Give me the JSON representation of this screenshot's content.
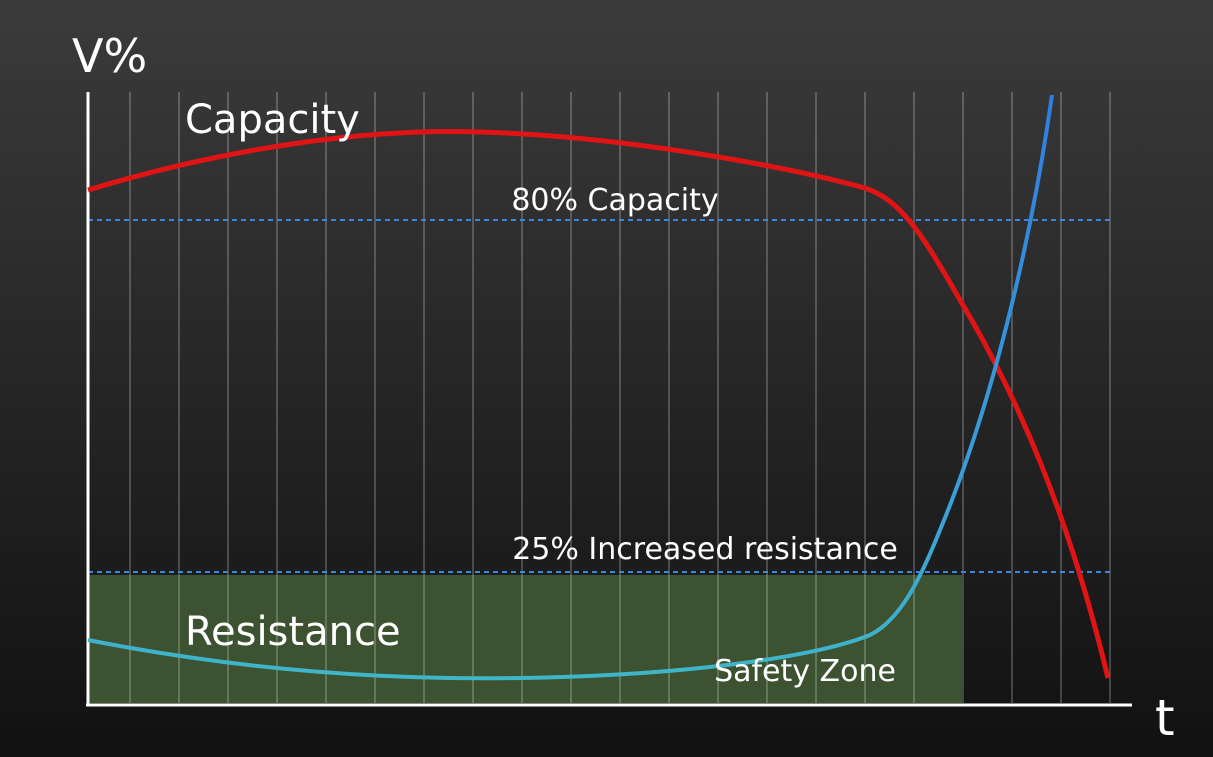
{
  "y_axis_label": "V%",
  "x_axis_label": "t",
  "curves": {
    "capacity": "Capacity",
    "resistance": "Resistance"
  },
  "thresholds": {
    "capacity": "80% Capacity",
    "resistance": "25% Increased resistance"
  },
  "zone": "Safety Zone"
}
